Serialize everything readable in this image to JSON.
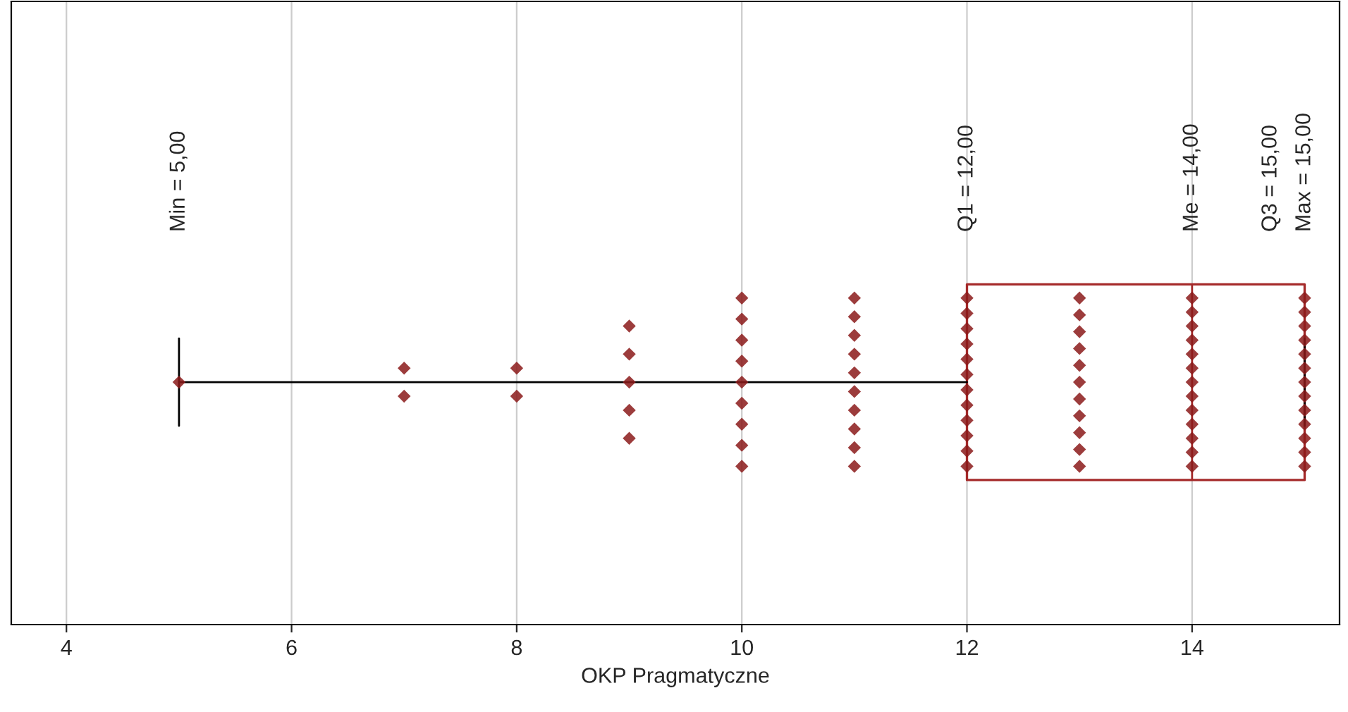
{
  "chart_data": {
    "type": "box",
    "orientation": "horizontal",
    "xlabel": "OKP Pragmatyczne",
    "categories": [
      null
    ],
    "boxes": [
      {
        "low": 5,
        "q1": 12,
        "median": 14,
        "q3": 15,
        "high": 15
      }
    ],
    "series": [
      {
        "type": "scatter",
        "color": "#8b1a1a",
        "marker": "diamond",
        "x": [
          null,
          null,
          null,
          null,
          null,
          null,
          null,
          null,
          null,
          null,
          null,
          null,
          null,
          null,
          null,
          null,
          null,
          null,
          null,
          null,
          null,
          null,
          null,
          null,
          null,
          null,
          null,
          null,
          null,
          null,
          null,
          null,
          null,
          null,
          null,
          null,
          null,
          null,
          null,
          null,
          null,
          null,
          null,
          null,
          null,
          null,
          null,
          null,
          null,
          null,
          null,
          null,
          null,
          null,
          null,
          null,
          null,
          null,
          null,
          null,
          null,
          null,
          null,
          null,
          null,
          null,
          null,
          null,
          null,
          null,
          null,
          null,
          null,
          null,
          null,
          null,
          null,
          null
        ],
        "values": [
          5,
          7,
          7,
          8,
          8,
          9,
          9,
          9,
          9,
          9,
          10,
          10,
          10,
          10,
          10,
          10,
          10,
          10,
          10,
          11,
          11,
          11,
          11,
          11,
          11,
          11,
          11,
          11,
          11,
          12,
          12,
          12,
          12,
          12,
          12,
          12,
          12,
          12,
          12,
          12,
          12,
          13,
          13,
          13,
          13,
          13,
          13,
          13,
          13,
          13,
          13,
          13,
          14,
          14,
          14,
          14,
          14,
          14,
          14,
          14,
          14,
          14,
          14,
          14,
          14,
          15,
          15,
          15,
          15,
          15,
          15,
          15,
          15,
          15,
          15,
          15,
          15,
          15
        ]
      }
    ],
    "xlim": [
      3.51,
      15.31
    ],
    "xticks": [
      4,
      6,
      8,
      10,
      12,
      14
    ],
    "grid": "x",
    "annotations": [
      "Min = 5,00",
      "Q1 = 12,00",
      "Me = 14,00",
      "Q3 = 15,00",
      "Max = 15,00"
    ]
  }
}
